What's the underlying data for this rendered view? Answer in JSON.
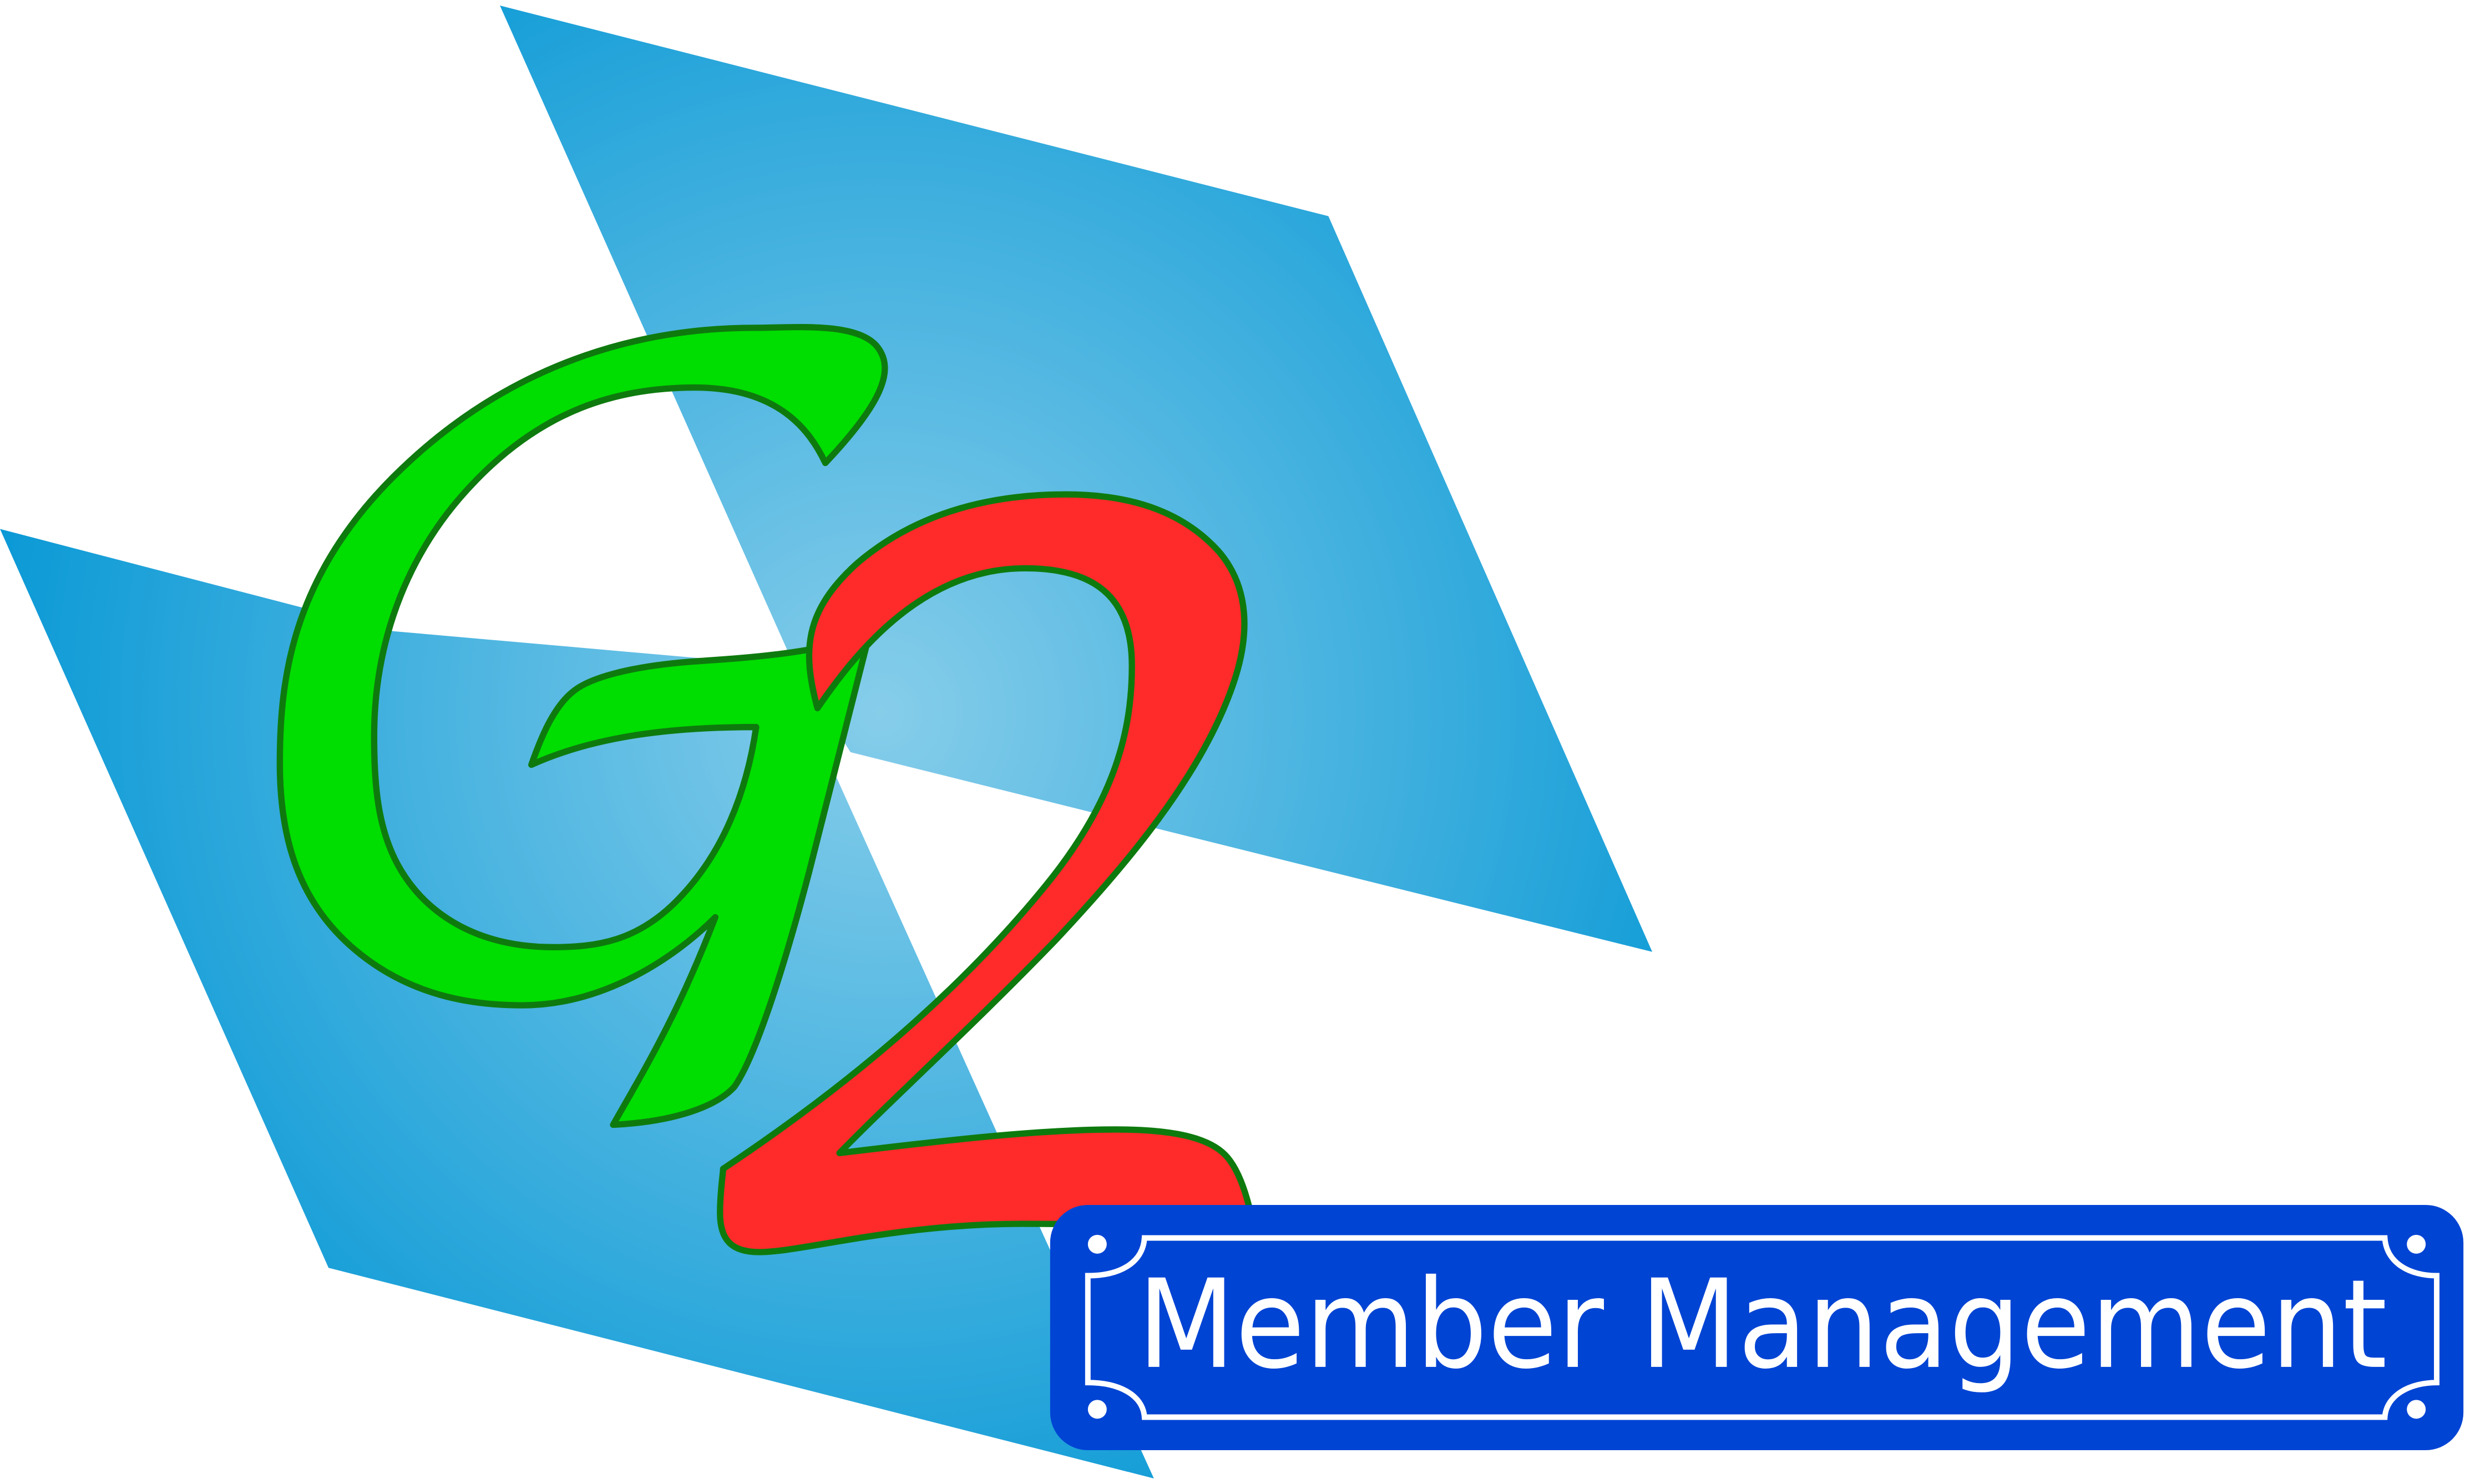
{
  "logo": {
    "mark_letter_1": "G",
    "mark_letter_2": "2",
    "banner_text": "Member Management"
  },
  "colors": {
    "panel_blue_light": "#86cdea",
    "panel_blue_dark": "#0095d4",
    "letter_g_green": "#00dd00",
    "letter_2_red": "#ff2a2a",
    "outline_green": "#0e7a0e",
    "banner_blue": "#0044d4",
    "banner_border": "#ffffff"
  }
}
